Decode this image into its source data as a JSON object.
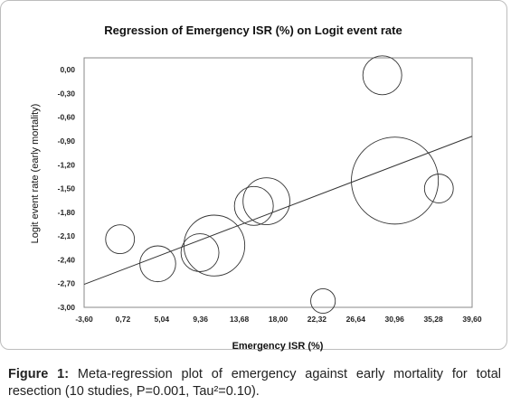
{
  "chart_data": {
    "type": "scatter",
    "title": "Regression of Emergency ISR (%) on Logit event rate",
    "xlabel": "Emergency ISR (%)",
    "ylabel": "Logit event rate (early mortality)",
    "xlim": [
      -3.6,
      39.6
    ],
    "ylim": [
      -3.0,
      0.15
    ],
    "x_ticks": [
      -3.6,
      0.72,
      5.04,
      9.36,
      13.68,
      18.0,
      22.32,
      26.64,
      30.96,
      35.28,
      39.6
    ],
    "x_tick_labels": [
      "-3,60",
      "0,72",
      "5,04",
      "9,36",
      "13,68",
      "18,00",
      "22,32",
      "26,64",
      "30,96",
      "35,28",
      "39,60"
    ],
    "y_ticks": [
      0.0,
      -0.3,
      -0.6,
      -0.9,
      -1.2,
      -1.5,
      -1.8,
      -2.1,
      -2.4,
      -2.7,
      -3.0
    ],
    "y_tick_labels": [
      "0,00",
      "-0,30",
      "-0,60",
      "-0,90",
      "-1,20",
      "-1,50",
      "-1,80",
      "-2,10",
      "-2,40",
      "-2,70",
      "-3,00"
    ],
    "points": [
      {
        "x": 0.4,
        "y": -2.14,
        "weight": 0.55
      },
      {
        "x": 4.6,
        "y": -2.45,
        "weight": 0.85
      },
      {
        "x": 9.3,
        "y": -2.31,
        "weight": 0.95
      },
      {
        "x": 10.9,
        "y": -2.22,
        "weight": 2.45
      },
      {
        "x": 15.3,
        "y": -1.72,
        "weight": 1.0
      },
      {
        "x": 16.7,
        "y": -1.66,
        "weight": 1.45
      },
      {
        "x": 23.0,
        "y": -2.92,
        "weight": 0.4
      },
      {
        "x": 29.6,
        "y": -0.07,
        "weight": 1.0
      },
      {
        "x": 31.0,
        "y": -1.4,
        "weight": 5.0
      },
      {
        "x": 35.9,
        "y": -1.5,
        "weight": 0.55
      }
    ],
    "regression_line": {
      "x": [
        -3.6,
        39.6
      ],
      "y": [
        -2.71,
        -0.84
      ]
    },
    "grid": false,
    "legend": "none"
  },
  "caption": {
    "label": "Figure 1:",
    "text": "Meta-regression plot of emergency against early mortality for total resection (10 studies, P=0.001, Tau²=0.10)."
  }
}
